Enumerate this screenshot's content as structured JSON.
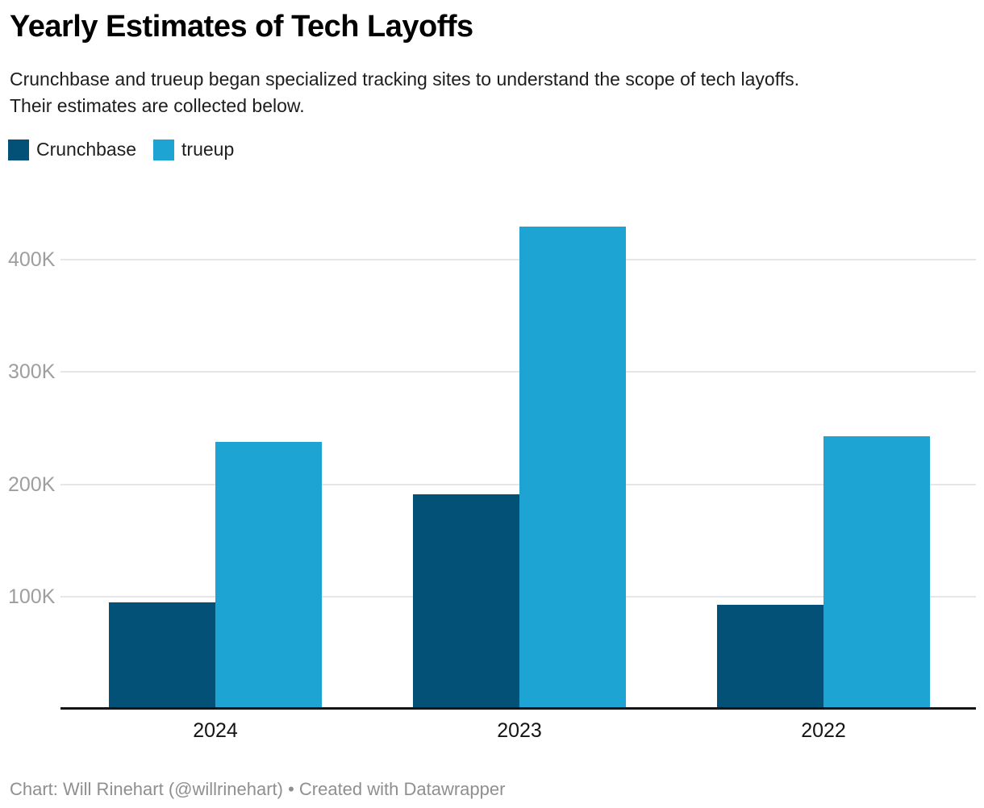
{
  "header": {
    "title": "Yearly Estimates of Tech Layoffs",
    "description_line1": "Crunchbase and trueup began specialized tracking sites to understand the scope of tech layoffs.",
    "description_line2": "Their estimates are collected below."
  },
  "legend": {
    "items": [
      {
        "label": "Crunchbase",
        "color": "#045177"
      },
      {
        "label": "trueup",
        "color": "#1da4d3"
      }
    ]
  },
  "chart_data": {
    "type": "bar",
    "title": "Yearly Estimates of Tech Layoffs",
    "subtitle": "Crunchbase and trueup began specialized tracking sites to understand the scope of tech layoffs. Their estimates are collected below.",
    "categories": [
      "2024",
      "2023",
      "2022"
    ],
    "series": [
      {
        "name": "Crunchbase",
        "color": "#045177",
        "values": [
          95000,
          191000,
          93000
        ]
      },
      {
        "name": "trueup",
        "color": "#1da4d3",
        "values": [
          238000,
          429000,
          243000
        ]
      }
    ],
    "xlabel": "",
    "ylabel": "",
    "ylim": [
      0,
      440000
    ],
    "yticks": [
      {
        "value": 100000,
        "label": "100K"
      },
      {
        "value": 200000,
        "label": "200K"
      },
      {
        "value": 300000,
        "label": "300K"
      },
      {
        "value": 400000,
        "label": "400K"
      }
    ],
    "grid": "horizontal",
    "legend_position": "top-left"
  },
  "footer": {
    "text": "Chart: Will Rinehart (@willrinehart) • Created with Datawrapper"
  }
}
